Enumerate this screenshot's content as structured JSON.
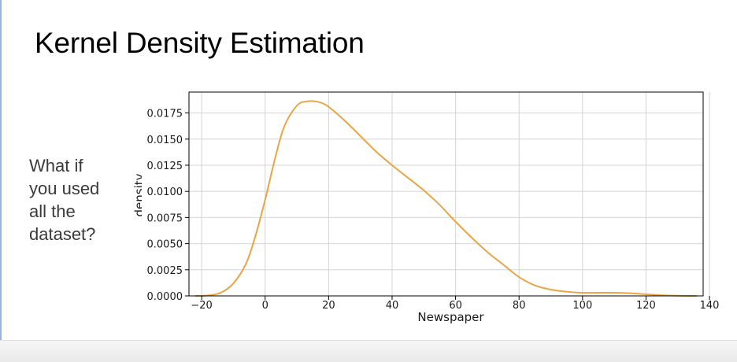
{
  "slide": {
    "title": "Kernel Density Estimation",
    "note_lines": [
      "What if",
      "you used",
      "all the",
      "dataset?"
    ]
  },
  "colors": {
    "curve": "#E8A545",
    "grid": "#d4d4d4",
    "axes": "#000000",
    "background": "#ffffff"
  },
  "chart_data": {
    "type": "line",
    "title": "",
    "xlabel": "Newspaper",
    "ylabel": "density",
    "xlim": [
      -24,
      138
    ],
    "ylim": [
      0,
      0.0195
    ],
    "grid": true,
    "x_ticks": [
      -20,
      0,
      20,
      40,
      60,
      80,
      100,
      120,
      140
    ],
    "x_tick_labels": [
      "−20",
      "0",
      "20",
      "40",
      "60",
      "80",
      "100",
      "120",
      "140"
    ],
    "y_ticks": [
      0,
      0.0025,
      0.005,
      0.0075,
      0.01,
      0.0125,
      0.015,
      0.0175
    ],
    "y_tick_labels": [
      "0.0000",
      "0.0025",
      "0.0050",
      "0.0075",
      "0.0100",
      "0.0125",
      "0.0150",
      "0.0175"
    ],
    "series": [
      {
        "x": [
          -22,
          -18,
          -14,
          -10,
          -6,
          -3,
          0,
          3,
          6,
          10,
          13,
          16,
          19,
          22,
          26,
          30,
          35,
          40,
          45,
          50,
          55,
          60,
          65,
          70,
          75,
          80,
          85,
          90,
          95,
          100,
          105,
          110,
          115,
          120,
          125,
          130,
          136
        ],
        "y": [
          0.0,
          5e-05,
          0.0003,
          0.0012,
          0.0031,
          0.0058,
          0.0092,
          0.013,
          0.0162,
          0.0182,
          0.0186,
          0.0186,
          0.0183,
          0.0176,
          0.0165,
          0.0153,
          0.0138,
          0.0125,
          0.0113,
          0.0101,
          0.0087,
          0.0071,
          0.0056,
          0.0042,
          0.003,
          0.0018,
          0.001,
          0.0006,
          0.0004,
          0.0003,
          0.0003,
          0.0003,
          0.00025,
          0.00015,
          7e-05,
          2e-05,
          0.0
        ]
      }
    ]
  }
}
